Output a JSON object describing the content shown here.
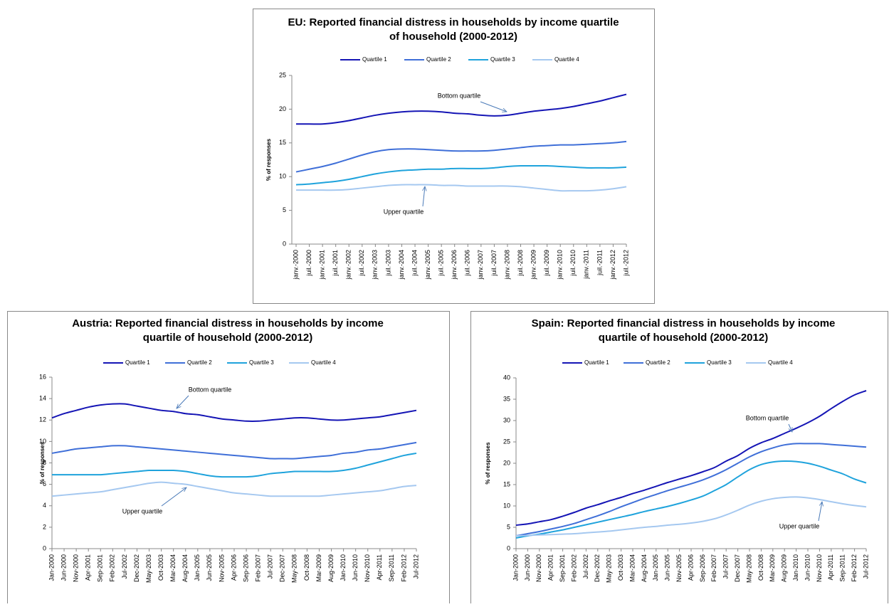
{
  "chart_data": [
    {
      "type": "line",
      "title": [
        "EU: Reported financial distress in households by income quartile",
        "of household (2000-2012)"
      ],
      "y_label": "% of responses",
      "annotations": [
        "Bottom quartile",
        "Upper quartile"
      ],
      "grid": false,
      "legend": "top",
      "categories": [
        "janv.-2000",
        "juil.-2000",
        "janv.-2001",
        "juil.-2001",
        "janv.-2002",
        "juil.-2002",
        "janv.-2003",
        "juil.-2003",
        "janv.-2004",
        "juil.-2004",
        "janv.-2005",
        "juil.-2005",
        "janv.-2006",
        "juil.-2006",
        "janv.-2007",
        "juil.-2007",
        "janv.-2008",
        "juil.-2008",
        "janv.-2009",
        "juil.-2009",
        "janv.-2010",
        "juil.-2010",
        "janv.-2011",
        "juil.-2011",
        "janv.-2012",
        "juil.-2012"
      ],
      "ylim": [
        0,
        25
      ],
      "yticks": [
        0,
        5,
        10,
        15,
        20,
        25
      ],
      "series": [
        {
          "name": "Quartile 1",
          "color": "#1515b5",
          "values": [
            17.8,
            17.8,
            17.8,
            18.0,
            18.3,
            18.7,
            19.1,
            19.4,
            19.6,
            19.7,
            19.7,
            19.6,
            19.4,
            19.3,
            19.1,
            19.0,
            19.1,
            19.4,
            19.7,
            19.9,
            20.1,
            20.4,
            20.8,
            21.2,
            21.7,
            22.2
          ]
        },
        {
          "name": "Quartile 2",
          "color": "#3f6fd8",
          "values": [
            10.7,
            11.1,
            11.5,
            12.0,
            12.6,
            13.2,
            13.7,
            14.0,
            14.1,
            14.1,
            14.0,
            13.9,
            13.8,
            13.8,
            13.8,
            13.9,
            14.1,
            14.3,
            14.5,
            14.6,
            14.7,
            14.7,
            14.8,
            14.9,
            15.0,
            15.2
          ]
        },
        {
          "name": "Quartile 3",
          "color": "#1fa3dc",
          "values": [
            8.8,
            8.9,
            9.1,
            9.3,
            9.6,
            10.0,
            10.4,
            10.7,
            10.9,
            11.0,
            11.1,
            11.1,
            11.2,
            11.2,
            11.2,
            11.3,
            11.5,
            11.6,
            11.6,
            11.6,
            11.5,
            11.4,
            11.3,
            11.3,
            11.3,
            11.4
          ]
        },
        {
          "name": "Quartile 4",
          "color": "#a5c8f0",
          "values": [
            8.0,
            8.0,
            8.0,
            8.0,
            8.1,
            8.3,
            8.5,
            8.7,
            8.8,
            8.8,
            8.8,
            8.7,
            8.7,
            8.6,
            8.6,
            8.6,
            8.6,
            8.5,
            8.3,
            8.1,
            7.9,
            7.9,
            7.9,
            8.0,
            8.2,
            8.5
          ]
        }
      ]
    },
    {
      "type": "line",
      "title": [
        "Austria: Reported financial distress in households by income",
        "quartile of household (2000-2012)"
      ],
      "y_label": "% of responses",
      "annotations": [
        "Bottom quartile",
        "Upper quartile"
      ],
      "grid": false,
      "legend": "top",
      "categories": [
        "Jan-2000",
        "Jun-2000",
        "Nov-2000",
        "Apr-2001",
        "Sep-2001",
        "Feb-2002",
        "Jul-2002",
        "Dec-2002",
        "May-2003",
        "Oct-2003",
        "Mar-2004",
        "Aug-2004",
        "Jan-2005",
        "Jun-2005",
        "Nov-2005",
        "Apr-2006",
        "Sep-2006",
        "Feb-2007",
        "Jul-2007",
        "Dec-2007",
        "May-2008",
        "Oct-2008",
        "Mar-2009",
        "Aug-2009",
        "Jan-2010",
        "Jun-2010",
        "Nov-2010",
        "Apr-2011",
        "Sep-2011",
        "Feb-2012",
        "Jul-2012"
      ],
      "ylim": [
        0,
        16
      ],
      "yticks": [
        0,
        2,
        4,
        6,
        8,
        10,
        12,
        14,
        16
      ],
      "series": [
        {
          "name": "Quartile 1",
          "color": "#1515b5",
          "values": [
            12.2,
            12.6,
            12.9,
            13.2,
            13.4,
            13.5,
            13.5,
            13.3,
            13.1,
            12.9,
            12.8,
            12.6,
            12.5,
            12.3,
            12.1,
            12.0,
            11.9,
            11.9,
            12.0,
            12.1,
            12.2,
            12.2,
            12.1,
            12.0,
            12.0,
            12.1,
            12.2,
            12.3,
            12.5,
            12.7,
            12.9
          ]
        },
        {
          "name": "Quartile 2",
          "color": "#3f6fd8",
          "values": [
            8.9,
            9.1,
            9.3,
            9.4,
            9.5,
            9.6,
            9.6,
            9.5,
            9.4,
            9.3,
            9.2,
            9.1,
            9.0,
            8.9,
            8.8,
            8.7,
            8.6,
            8.5,
            8.4,
            8.4,
            8.4,
            8.5,
            8.6,
            8.7,
            8.9,
            9.0,
            9.2,
            9.3,
            9.5,
            9.7,
            9.9
          ]
        },
        {
          "name": "Quartile 3",
          "color": "#1fa3dc",
          "values": [
            6.9,
            6.9,
            6.9,
            6.9,
            6.9,
            7.0,
            7.1,
            7.2,
            7.3,
            7.3,
            7.3,
            7.2,
            7.0,
            6.8,
            6.7,
            6.7,
            6.7,
            6.8,
            7.0,
            7.1,
            7.2,
            7.2,
            7.2,
            7.2,
            7.3,
            7.5,
            7.8,
            8.1,
            8.4,
            8.7,
            8.9
          ]
        },
        {
          "name": "Quartile 4",
          "color": "#a5c8f0",
          "values": [
            4.9,
            5.0,
            5.1,
            5.2,
            5.3,
            5.5,
            5.7,
            5.9,
            6.1,
            6.2,
            6.1,
            6.0,
            5.8,
            5.6,
            5.4,
            5.2,
            5.1,
            5.0,
            4.9,
            4.9,
            4.9,
            4.9,
            4.9,
            5.0,
            5.1,
            5.2,
            5.3,
            5.4,
            5.6,
            5.8,
            5.9
          ]
        }
      ]
    },
    {
      "type": "line",
      "title": [
        "Spain: Reported financial distress in households by income",
        "quartile of household (2000-2012)"
      ],
      "y_label": "% of responses",
      "annotations": [
        "Bottom quartile",
        "Upper quartile"
      ],
      "grid": false,
      "legend": "top",
      "categories": [
        "Jan-2000",
        "Jun-2000",
        "Nov-2000",
        "Apr-2001",
        "Sep-2001",
        "Feb-2002",
        "Jul-2002",
        "Dec-2002",
        "May-2003",
        "Oct-2003",
        "Mar-2004",
        "Aug-2004",
        "Jan-2005",
        "Jun-2005",
        "Nov-2005",
        "Apr-2006",
        "Sep-2006",
        "Feb-2007",
        "Jul-2007",
        "Dec-2007",
        "May-2008",
        "Oct-2008",
        "Mar-2009",
        "Aug-2009",
        "Jan-2010",
        "Jun-2010",
        "Nov-2010",
        "Apr-2011",
        "Sep-2011",
        "Feb-2012",
        "Jul-2012"
      ],
      "ylim": [
        0,
        40
      ],
      "yticks": [
        0,
        5,
        10,
        15,
        20,
        25,
        30,
        35,
        40
      ],
      "series": [
        {
          "name": "Quartile 1",
          "color": "#1515b5",
          "values": [
            5.5,
            5.8,
            6.3,
            6.8,
            7.6,
            8.5,
            9.5,
            10.3,
            11.2,
            12.0,
            12.9,
            13.7,
            14.6,
            15.5,
            16.3,
            17.1,
            18.0,
            19.0,
            20.5,
            21.8,
            23.5,
            24.8,
            25.8,
            27.0,
            28.2,
            29.5,
            31.0,
            32.8,
            34.5,
            36.0,
            37.0
          ]
        },
        {
          "name": "Quartile 2",
          "color": "#3f6fd8",
          "values": [
            3.0,
            3.5,
            4.0,
            4.6,
            5.2,
            5.9,
            6.8,
            7.7,
            8.7,
            9.8,
            10.8,
            11.8,
            12.7,
            13.6,
            14.4,
            15.2,
            16.1,
            17.2,
            18.5,
            20.0,
            21.5,
            22.7,
            23.6,
            24.3,
            24.6,
            24.6,
            24.6,
            24.4,
            24.2,
            24.0,
            23.8
          ]
        },
        {
          "name": "Quartile 3",
          "color": "#1fa3dc",
          "values": [
            2.5,
            3.0,
            3.4,
            3.9,
            4.4,
            5.0,
            5.6,
            6.2,
            6.8,
            7.4,
            8.0,
            8.7,
            9.3,
            9.9,
            10.6,
            11.4,
            12.3,
            13.6,
            15.0,
            16.8,
            18.5,
            19.7,
            20.3,
            20.5,
            20.4,
            20.0,
            19.3,
            18.4,
            17.5,
            16.3,
            15.4
          ]
        },
        {
          "name": "Quartile 4",
          "color": "#a5c8f0",
          "values": [
            3.0,
            3.1,
            3.2,
            3.3,
            3.4,
            3.5,
            3.7,
            3.9,
            4.1,
            4.4,
            4.7,
            5.0,
            5.2,
            5.5,
            5.7,
            6.0,
            6.4,
            7.0,
            7.9,
            9.0,
            10.2,
            11.1,
            11.7,
            12.0,
            12.1,
            11.9,
            11.5,
            11.0,
            10.5,
            10.1,
            9.8
          ]
        }
      ]
    }
  ]
}
